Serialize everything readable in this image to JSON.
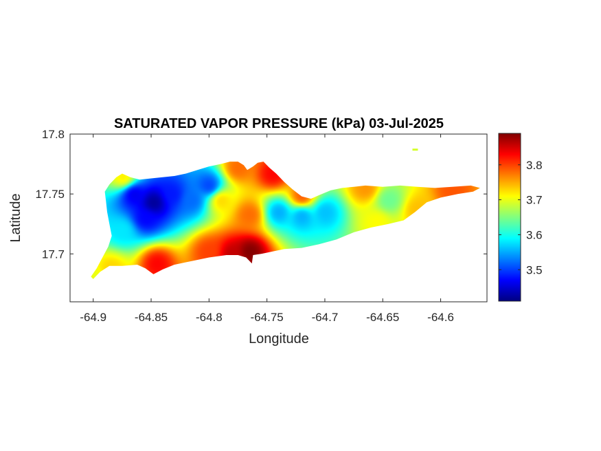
{
  "chart_data": {
    "type": "heatmap",
    "title": "SATURATED VAPOR PRESSURE (kPa) 03-Jul-2025",
    "xlabel": "Longitude",
    "ylabel": "Latitude",
    "xlim": [
      -64.92,
      -64.56
    ],
    "ylim": [
      17.66,
      17.8
    ],
    "x_ticks": [
      -64.9,
      -64.85,
      -64.8,
      -64.75,
      -64.7,
      -64.65,
      -64.6
    ],
    "x_tick_labels": [
      "-64.9",
      "-64.85",
      "-64.8",
      "-64.75",
      "-64.7",
      "-64.65",
      "-64.6"
    ],
    "y_ticks": [
      17.7,
      17.75,
      17.8
    ],
    "y_tick_labels": [
      "17.7",
      "17.75",
      "17.8"
    ],
    "colorbar": {
      "colormap": "jet",
      "range": [
        3.41,
        3.89
      ],
      "ticks": [
        3.5,
        3.6,
        3.7,
        3.8
      ],
      "tick_labels": [
        "3.5",
        "3.6",
        "3.7",
        "3.8"
      ]
    },
    "grid": false,
    "outline": [
      [
        -64.9,
        17.679
      ],
      [
        -64.894,
        17.685
      ],
      [
        -64.886,
        17.69
      ],
      [
        -64.875,
        17.69
      ],
      [
        -64.862,
        17.691
      ],
      [
        -64.855,
        17.688
      ],
      [
        -64.848,
        17.683
      ],
      [
        -64.84,
        17.687
      ],
      [
        -64.83,
        17.691
      ],
      [
        -64.815,
        17.694
      ],
      [
        -64.8,
        17.697
      ],
      [
        -64.785,
        17.699
      ],
      [
        -64.775,
        17.699
      ],
      [
        -64.768,
        17.697
      ],
      [
        -64.763,
        17.692
      ],
      [
        -64.762,
        17.699
      ],
      [
        -64.755,
        17.7
      ],
      [
        -64.745,
        17.702
      ],
      [
        -64.735,
        17.704
      ],
      [
        -64.72,
        17.705
      ],
      [
        -64.705,
        17.708
      ],
      [
        -64.69,
        17.712
      ],
      [
        -64.675,
        17.718
      ],
      [
        -64.66,
        17.722
      ],
      [
        -64.645,
        17.725
      ],
      [
        -64.632,
        17.728
      ],
      [
        -64.622,
        17.735
      ],
      [
        -64.612,
        17.743
      ],
      [
        -64.6,
        17.747
      ],
      [
        -64.585,
        17.75
      ],
      [
        -64.572,
        17.752
      ],
      [
        -64.566,
        17.755
      ],
      [
        -64.574,
        17.757
      ],
      [
        -64.59,
        17.756
      ],
      [
        -64.605,
        17.755
      ],
      [
        -64.62,
        17.756
      ],
      [
        -64.635,
        17.757
      ],
      [
        -64.65,
        17.756
      ],
      [
        -64.665,
        17.757
      ],
      [
        -64.675,
        17.756
      ],
      [
        -64.685,
        17.755
      ],
      [
        -64.695,
        17.753
      ],
      [
        -64.705,
        17.749
      ],
      [
        -64.712,
        17.746
      ],
      [
        -64.72,
        17.748
      ],
      [
        -64.728,
        17.754
      ],
      [
        -64.735,
        17.76
      ],
      [
        -64.742,
        17.767
      ],
      [
        -64.748,
        17.772
      ],
      [
        -64.753,
        17.777
      ],
      [
        -64.758,
        17.776
      ],
      [
        -64.762,
        17.773
      ],
      [
        -64.767,
        17.77
      ],
      [
        -64.77,
        17.774
      ],
      [
        -64.775,
        17.777
      ],
      [
        -64.782,
        17.777
      ],
      [
        -64.79,
        17.775
      ],
      [
        -64.8,
        17.773
      ],
      [
        -64.81,
        17.77
      ],
      [
        -64.82,
        17.767
      ],
      [
        -64.83,
        17.765
      ],
      [
        -64.84,
        17.764
      ],
      [
        -64.85,
        17.763
      ],
      [
        -64.86,
        17.762
      ],
      [
        -64.868,
        17.764
      ],
      [
        -64.875,
        17.767
      ],
      [
        -64.88,
        17.764
      ],
      [
        -64.886,
        17.758
      ],
      [
        -64.89,
        17.752
      ],
      [
        -64.889,
        17.744
      ],
      [
        -64.888,
        17.735
      ],
      [
        -64.886,
        17.725
      ],
      [
        -64.884,
        17.715
      ],
      [
        -64.887,
        17.706
      ],
      [
        -64.892,
        17.697
      ],
      [
        -64.897,
        17.688
      ],
      [
        -64.902,
        17.681
      ]
    ],
    "value_field": {
      "base": 3.62,
      "features": [
        {
          "lon": -64.848,
          "lat": 17.743,
          "value": 3.42
        },
        {
          "lon": -64.865,
          "lat": 17.75,
          "value": 3.46
        },
        {
          "lon": -64.832,
          "lat": 17.75,
          "value": 3.48
        },
        {
          "lon": -64.855,
          "lat": 17.73,
          "value": 3.47
        },
        {
          "lon": -64.8,
          "lat": 17.757,
          "value": 3.5
        },
        {
          "lon": -64.815,
          "lat": 17.745,
          "value": 3.52
        },
        {
          "lon": -64.875,
          "lat": 17.72,
          "value": 3.58
        },
        {
          "lon": -64.74,
          "lat": 17.735,
          "value": 3.55
        },
        {
          "lon": -64.72,
          "lat": 17.732,
          "value": 3.55
        },
        {
          "lon": -64.7,
          "lat": 17.735,
          "value": 3.56
        },
        {
          "lon": -64.765,
          "lat": 17.702,
          "value": 3.89
        },
        {
          "lon": -64.78,
          "lat": 17.7,
          "value": 3.86
        },
        {
          "lon": -64.845,
          "lat": 17.692,
          "value": 3.83
        },
        {
          "lon": -64.8,
          "lat": 17.702,
          "value": 3.8
        },
        {
          "lon": -64.745,
          "lat": 17.767,
          "value": 3.83
        },
        {
          "lon": -64.775,
          "lat": 17.772,
          "value": 3.78
        },
        {
          "lon": -64.72,
          "lat": 17.748,
          "value": 3.79
        },
        {
          "lon": -64.59,
          "lat": 17.753,
          "value": 3.79
        },
        {
          "lon": -64.665,
          "lat": 17.755,
          "value": 3.76
        },
        {
          "lon": -64.62,
          "lat": 17.737,
          "value": 3.74
        },
        {
          "lon": -64.655,
          "lat": 17.727,
          "value": 3.71
        },
        {
          "lon": -64.885,
          "lat": 17.688,
          "value": 3.73
        },
        {
          "lon": -64.9,
          "lat": 17.68,
          "value": 3.7
        },
        {
          "lon": -64.874,
          "lat": 17.764,
          "value": 3.72
        },
        {
          "lon": -64.765,
          "lat": 17.733,
          "value": 3.78
        },
        {
          "lon": -64.79,
          "lat": 17.745,
          "value": 3.73
        },
        {
          "lon": -64.645,
          "lat": 17.745,
          "value": 3.64
        }
      ]
    },
    "islet": {
      "lon": -64.622,
      "lat": 17.787,
      "value": 3.69
    }
  }
}
